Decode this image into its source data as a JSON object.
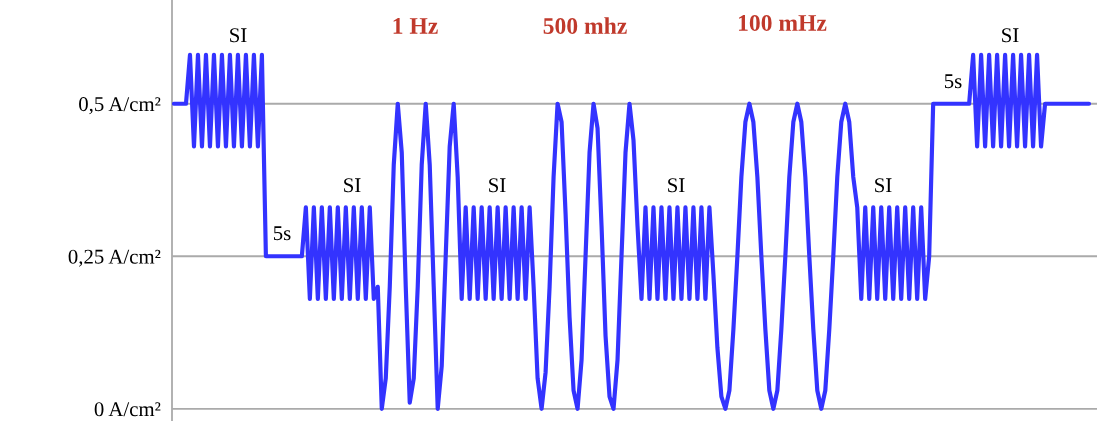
{
  "chart_data": {
    "type": "line",
    "categories": [
      null,
      null,
      null,
      null,
      null,
      null,
      null,
      null,
      null,
      null,
      null,
      null,
      null,
      null,
      null,
      null,
      null,
      null,
      null,
      null,
      null,
      null,
      null,
      null,
      null,
      null,
      null,
      null,
      null,
      null,
      null,
      null,
      null,
      null,
      null,
      null,
      null,
      null,
      null,
      null,
      null,
      null,
      null,
      null,
      null,
      null,
      null,
      null,
      null,
      null,
      null,
      null,
      null,
      null,
      null,
      null,
      null,
      null,
      null,
      null,
      null,
      null,
      null,
      null,
      null,
      null,
      null,
      null,
      null,
      null,
      null,
      null,
      null,
      null,
      null,
      null,
      null,
      null,
      null,
      null,
      null,
      null,
      null,
      null,
      null,
      null,
      null,
      null,
      null,
      null,
      null,
      null,
      null,
      null,
      null,
      null,
      null,
      null,
      null,
      null,
      null,
      null,
      null,
      null,
      null,
      null,
      null,
      null,
      null,
      null,
      null,
      null,
      null,
      null,
      null,
      null,
      null,
      null,
      null,
      null,
      null,
      null,
      null,
      null,
      null,
      null,
      null,
      null,
      null,
      null,
      null,
      null,
      null,
      null,
      null,
      null,
      null,
      null,
      null,
      null,
      null,
      null,
      null,
      null,
      null,
      null,
      null,
      null,
      null,
      null,
      null,
      null,
      null,
      null,
      null,
      null,
      null,
      null,
      null,
      null,
      null,
      null,
      null,
      null,
      null,
      null,
      null,
      null,
      null,
      null,
      null,
      null,
      null,
      null,
      null,
      null,
      null,
      null,
      null,
      null,
      null,
      null,
      null,
      null,
      null,
      null,
      null,
      null,
      null,
      null,
      null,
      null,
      null,
      null,
      null,
      null,
      null,
      null,
      null,
      null,
      null,
      null,
      null,
      null,
      null,
      null,
      null,
      null,
      null,
      null,
      null,
      null,
      null,
      null,
      null,
      null,
      null,
      null,
      null,
      null,
      null,
      null,
      null,
      null,
      null,
      null,
      null,
      null,
      null,
      null
    ],
    "values": [
      0.5,
      0.5,
      0.5,
      0.5,
      0.58,
      0.43,
      0.58,
      0.43,
      0.58,
      0.43,
      0.58,
      0.43,
      0.58,
      0.43,
      0.58,
      0.43,
      0.58,
      0.43,
      0.58,
      0.43,
      0.58,
      0.43,
      0.58,
      0.25,
      0.25,
      0.25,
      0.25,
      0.25,
      0.25,
      0.25,
      0.25,
      0.25,
      0.25,
      0.33,
      0.18,
      0.33,
      0.18,
      0.33,
      0.18,
      0.33,
      0.18,
      0.33,
      0.18,
      0.33,
      0.18,
      0.33,
      0.18,
      0.33,
      0.18,
      0.33,
      0.18,
      0.2,
      0.0,
      0.05,
      0.2,
      0.4,
      0.5,
      0.42,
      0.2,
      0.01,
      0.05,
      0.2,
      0.4,
      0.5,
      0.4,
      0.2,
      0.0,
      0.07,
      0.25,
      0.43,
      0.5,
      0.38,
      0.18,
      0.33,
      0.18,
      0.33,
      0.18,
      0.33,
      0.18,
      0.33,
      0.18,
      0.33,
      0.18,
      0.33,
      0.18,
      0.33,
      0.18,
      0.33,
      0.18,
      0.33,
      0.2,
      0.05,
      0.0,
      0.06,
      0.2,
      0.38,
      0.5,
      0.47,
      0.32,
      0.15,
      0.03,
      0.0,
      0.08,
      0.25,
      0.42,
      0.5,
      0.46,
      0.3,
      0.12,
      0.02,
      0.0,
      0.08,
      0.25,
      0.42,
      0.5,
      0.44,
      0.3,
      0.18,
      0.33,
      0.18,
      0.33,
      0.18,
      0.33,
      0.18,
      0.33,
      0.18,
      0.33,
      0.18,
      0.33,
      0.18,
      0.33,
      0.18,
      0.33,
      0.18,
      0.33,
      0.22,
      0.1,
      0.02,
      0.0,
      0.03,
      0.13,
      0.25,
      0.38,
      0.47,
      0.5,
      0.47,
      0.38,
      0.25,
      0.13,
      0.03,
      0.0,
      0.03,
      0.13,
      0.25,
      0.38,
      0.47,
      0.5,
      0.47,
      0.38,
      0.25,
      0.13,
      0.03,
      0.0,
      0.03,
      0.13,
      0.25,
      0.38,
      0.47,
      0.5,
      0.47,
      0.38,
      0.33,
      0.18,
      0.33,
      0.18,
      0.33,
      0.18,
      0.33,
      0.18,
      0.33,
      0.18,
      0.33,
      0.18,
      0.33,
      0.18,
      0.33,
      0.18,
      0.33,
      0.18,
      0.25,
      0.5,
      0.5,
      0.5,
      0.5,
      0.5,
      0.5,
      0.5,
      0.5,
      0.5,
      0.5,
      0.58,
      0.43,
      0.58,
      0.43,
      0.58,
      0.43,
      0.58,
      0.43,
      0.58,
      0.43,
      0.58,
      0.43,
      0.58,
      0.43,
      0.58,
      0.43,
      0.58,
      0.43,
      0.5,
      0.5,
      0.5,
      0.5,
      0.5,
      0.5,
      0.5,
      0.5,
      0.5,
      0.5,
      0.5,
      0.5
    ],
    "color": "#3333ff",
    "ylim": [
      -0.02,
      0.67
    ],
    "yticks": [
      {
        "value": 0,
        "label": "0 A/cm²"
      },
      {
        "value": 0.25,
        "label": "0,25 A/cm²"
      },
      {
        "value": 0.5,
        "label": "0,5 A/cm²"
      }
    ],
    "grid": "y",
    "tick_labels": "y",
    "annotations": [
      "SI",
      "5s",
      "SI",
      "1 Hz",
      "SI",
      "500 mhz",
      "SI",
      "100 mHz",
      "SI",
      "5s",
      "SI"
    ]
  }
}
